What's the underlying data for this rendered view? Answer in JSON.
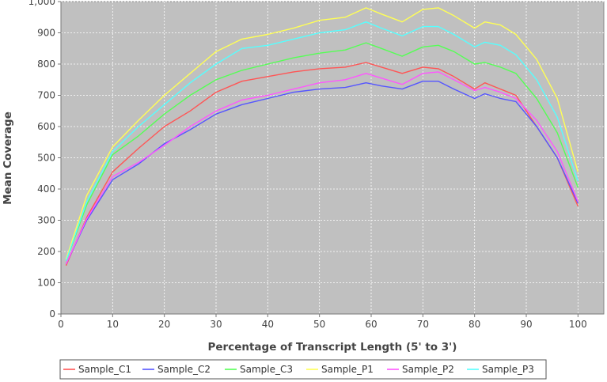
{
  "chart_data": {
    "type": "line",
    "title": "",
    "xlabel": "Percentage of Transcript Length (5' to 3')",
    "ylabel": "Mean Coverage",
    "xlim": [
      0,
      105
    ],
    "ylim": [
      0,
      1000
    ],
    "x_ticks": [
      0,
      10,
      20,
      30,
      40,
      50,
      60,
      70,
      80,
      90,
      100
    ],
    "y_ticks": [
      0,
      100,
      200,
      300,
      400,
      500,
      600,
      700,
      800,
      900,
      1000
    ],
    "y_tick_labels": [
      "0",
      "100",
      "200",
      "300",
      "400",
      "500",
      "600",
      "700",
      "800",
      "900",
      "1,000"
    ],
    "grid": true,
    "legend_position": "bottom",
    "plot_background": "#c0c0c0",
    "x": [
      1,
      5,
      10,
      15,
      20,
      25,
      30,
      35,
      40,
      45,
      50,
      55,
      59,
      62,
      66,
      70,
      73,
      76,
      80,
      82,
      85,
      88,
      92,
      96,
      100
    ],
    "series": [
      {
        "name": "Sample_C1",
        "color": "#ff5555",
        "values": [
          155,
          310,
          455,
          530,
          600,
          650,
          710,
          745,
          760,
          775,
          785,
          790,
          805,
          790,
          770,
          790,
          785,
          760,
          720,
          740,
          720,
          700,
          600,
          500,
          345
        ]
      },
      {
        "name": "Sample_C2",
        "color": "#5555ff",
        "values": [
          160,
          300,
          430,
          480,
          545,
          590,
          640,
          670,
          690,
          710,
          720,
          725,
          740,
          730,
          720,
          745,
          745,
          720,
          690,
          705,
          690,
          680,
          600,
          500,
          355
        ]
      },
      {
        "name": "Sample_C3",
        "color": "#55ff55",
        "values": [
          170,
          350,
          510,
          570,
          640,
          700,
          750,
          780,
          800,
          820,
          835,
          845,
          868,
          850,
          825,
          855,
          860,
          840,
          800,
          805,
          790,
          770,
          690,
          580,
          405
        ]
      },
      {
        "name": "Sample_P1",
        "color": "#ffff55",
        "values": [
          175,
          380,
          535,
          620,
          700,
          770,
          840,
          880,
          895,
          915,
          940,
          950,
          980,
          960,
          935,
          975,
          980,
          955,
          915,
          935,
          925,
          895,
          815,
          690,
          455
        ]
      },
      {
        "name": "Sample_P2",
        "color": "#ff55ff",
        "values": [
          160,
          305,
          440,
          485,
          540,
          600,
          650,
          685,
          700,
          720,
          740,
          750,
          770,
          755,
          735,
          770,
          775,
          750,
          715,
          725,
          710,
          690,
          620,
          520,
          360
        ]
      },
      {
        "name": "Sample_P3",
        "color": "#55ffff",
        "values": [
          170,
          360,
          520,
          600,
          670,
          740,
          800,
          850,
          860,
          880,
          900,
          910,
          935,
          915,
          890,
          920,
          920,
          895,
          855,
          870,
          860,
          830,
          750,
          630,
          425
        ]
      }
    ]
  }
}
